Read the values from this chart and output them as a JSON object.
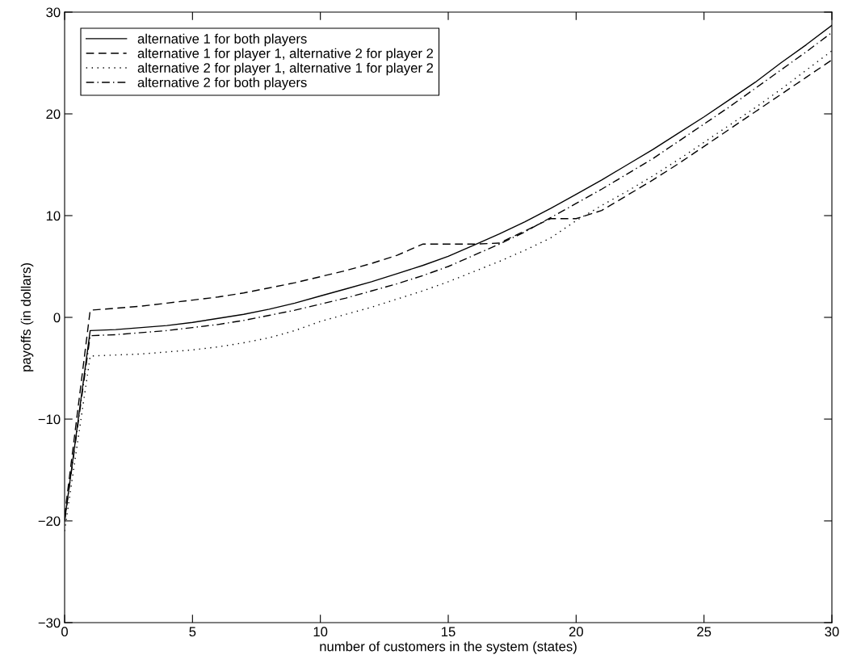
{
  "chart_data": {
    "type": "line",
    "xlabel": "number of customers in the system (states)",
    "ylabel": "payoffs (in dollars)",
    "x": [
      0,
      1,
      2,
      3,
      4,
      5,
      6,
      7,
      8,
      9,
      10,
      11,
      12,
      13,
      14,
      15,
      16,
      17,
      18,
      19,
      20,
      21,
      22,
      23,
      24,
      25,
      26,
      27,
      28,
      29,
      30
    ],
    "series": [
      {
        "name": "alternative 1 for both players",
        "color": "#000000",
        "line_style": "solid",
        "values": [
          -20,
          -1.3,
          -1.2,
          -1.0,
          -0.8,
          -0.5,
          -0.1,
          0.3,
          0.8,
          1.4,
          2.1,
          2.8,
          3.5,
          4.3,
          5.1,
          6.0,
          7.1,
          8.2,
          9.4,
          10.7,
          12.1,
          13.5,
          15.0,
          16.5,
          18.1,
          19.7,
          21.4,
          23.1,
          25.0,
          26.8,
          28.7
        ]
      },
      {
        "name": "alternative 1 for player 1, alternative 2 for player 2",
        "color": "#000000",
        "line_style": "dashed",
        "values": [
          -19.5,
          0.7,
          0.9,
          1.1,
          1.4,
          1.7,
          2.0,
          2.4,
          2.9,
          3.4,
          4.0,
          4.6,
          5.3,
          6.1,
          7.2,
          7.2,
          7.2,
          7.3,
          8.5,
          9.7,
          9.7,
          10.5,
          12.0,
          13.5,
          15.1,
          16.8,
          18.5,
          20.2,
          21.9,
          23.6,
          25.3
        ]
      },
      {
        "name": "alternative 2 for player 1, alternative 1 for player 2",
        "color": "#000000",
        "line_style": "dotted",
        "values": [
          -21,
          -3.8,
          -3.7,
          -3.6,
          -3.4,
          -3.2,
          -2.9,
          -2.5,
          -2.0,
          -1.3,
          -0.4,
          0.3,
          1.0,
          1.8,
          2.6,
          3.5,
          4.5,
          5.5,
          6.6,
          7.8,
          9.5,
          11.0,
          12.4,
          13.9,
          15.5,
          17.2,
          18.9,
          20.6,
          22.4,
          24.3,
          26.2
        ]
      },
      {
        "name": "alternative 2 for both players",
        "color": "#000000",
        "line_style": "dashdot",
        "values": [
          -20,
          -1.8,
          -1.7,
          -1.5,
          -1.3,
          -1.0,
          -0.7,
          -0.3,
          0.2,
          0.7,
          1.3,
          1.9,
          2.6,
          3.3,
          4.1,
          5.0,
          6.1,
          7.2,
          8.4,
          9.8,
          11.2,
          12.6,
          14.1,
          15.6,
          17.3,
          19.0,
          20.7,
          22.5,
          24.3,
          26.1,
          28.0
        ]
      }
    ],
    "xlim": [
      0,
      30
    ],
    "xticks": [
      0,
      5,
      10,
      15,
      20,
      25,
      30
    ],
    "ylim": [
      -30,
      30
    ],
    "yticks": [
      -30,
      -20,
      -10,
      0,
      10,
      20,
      30
    ],
    "grid": false,
    "legend": "top left",
    "marker": "none"
  }
}
